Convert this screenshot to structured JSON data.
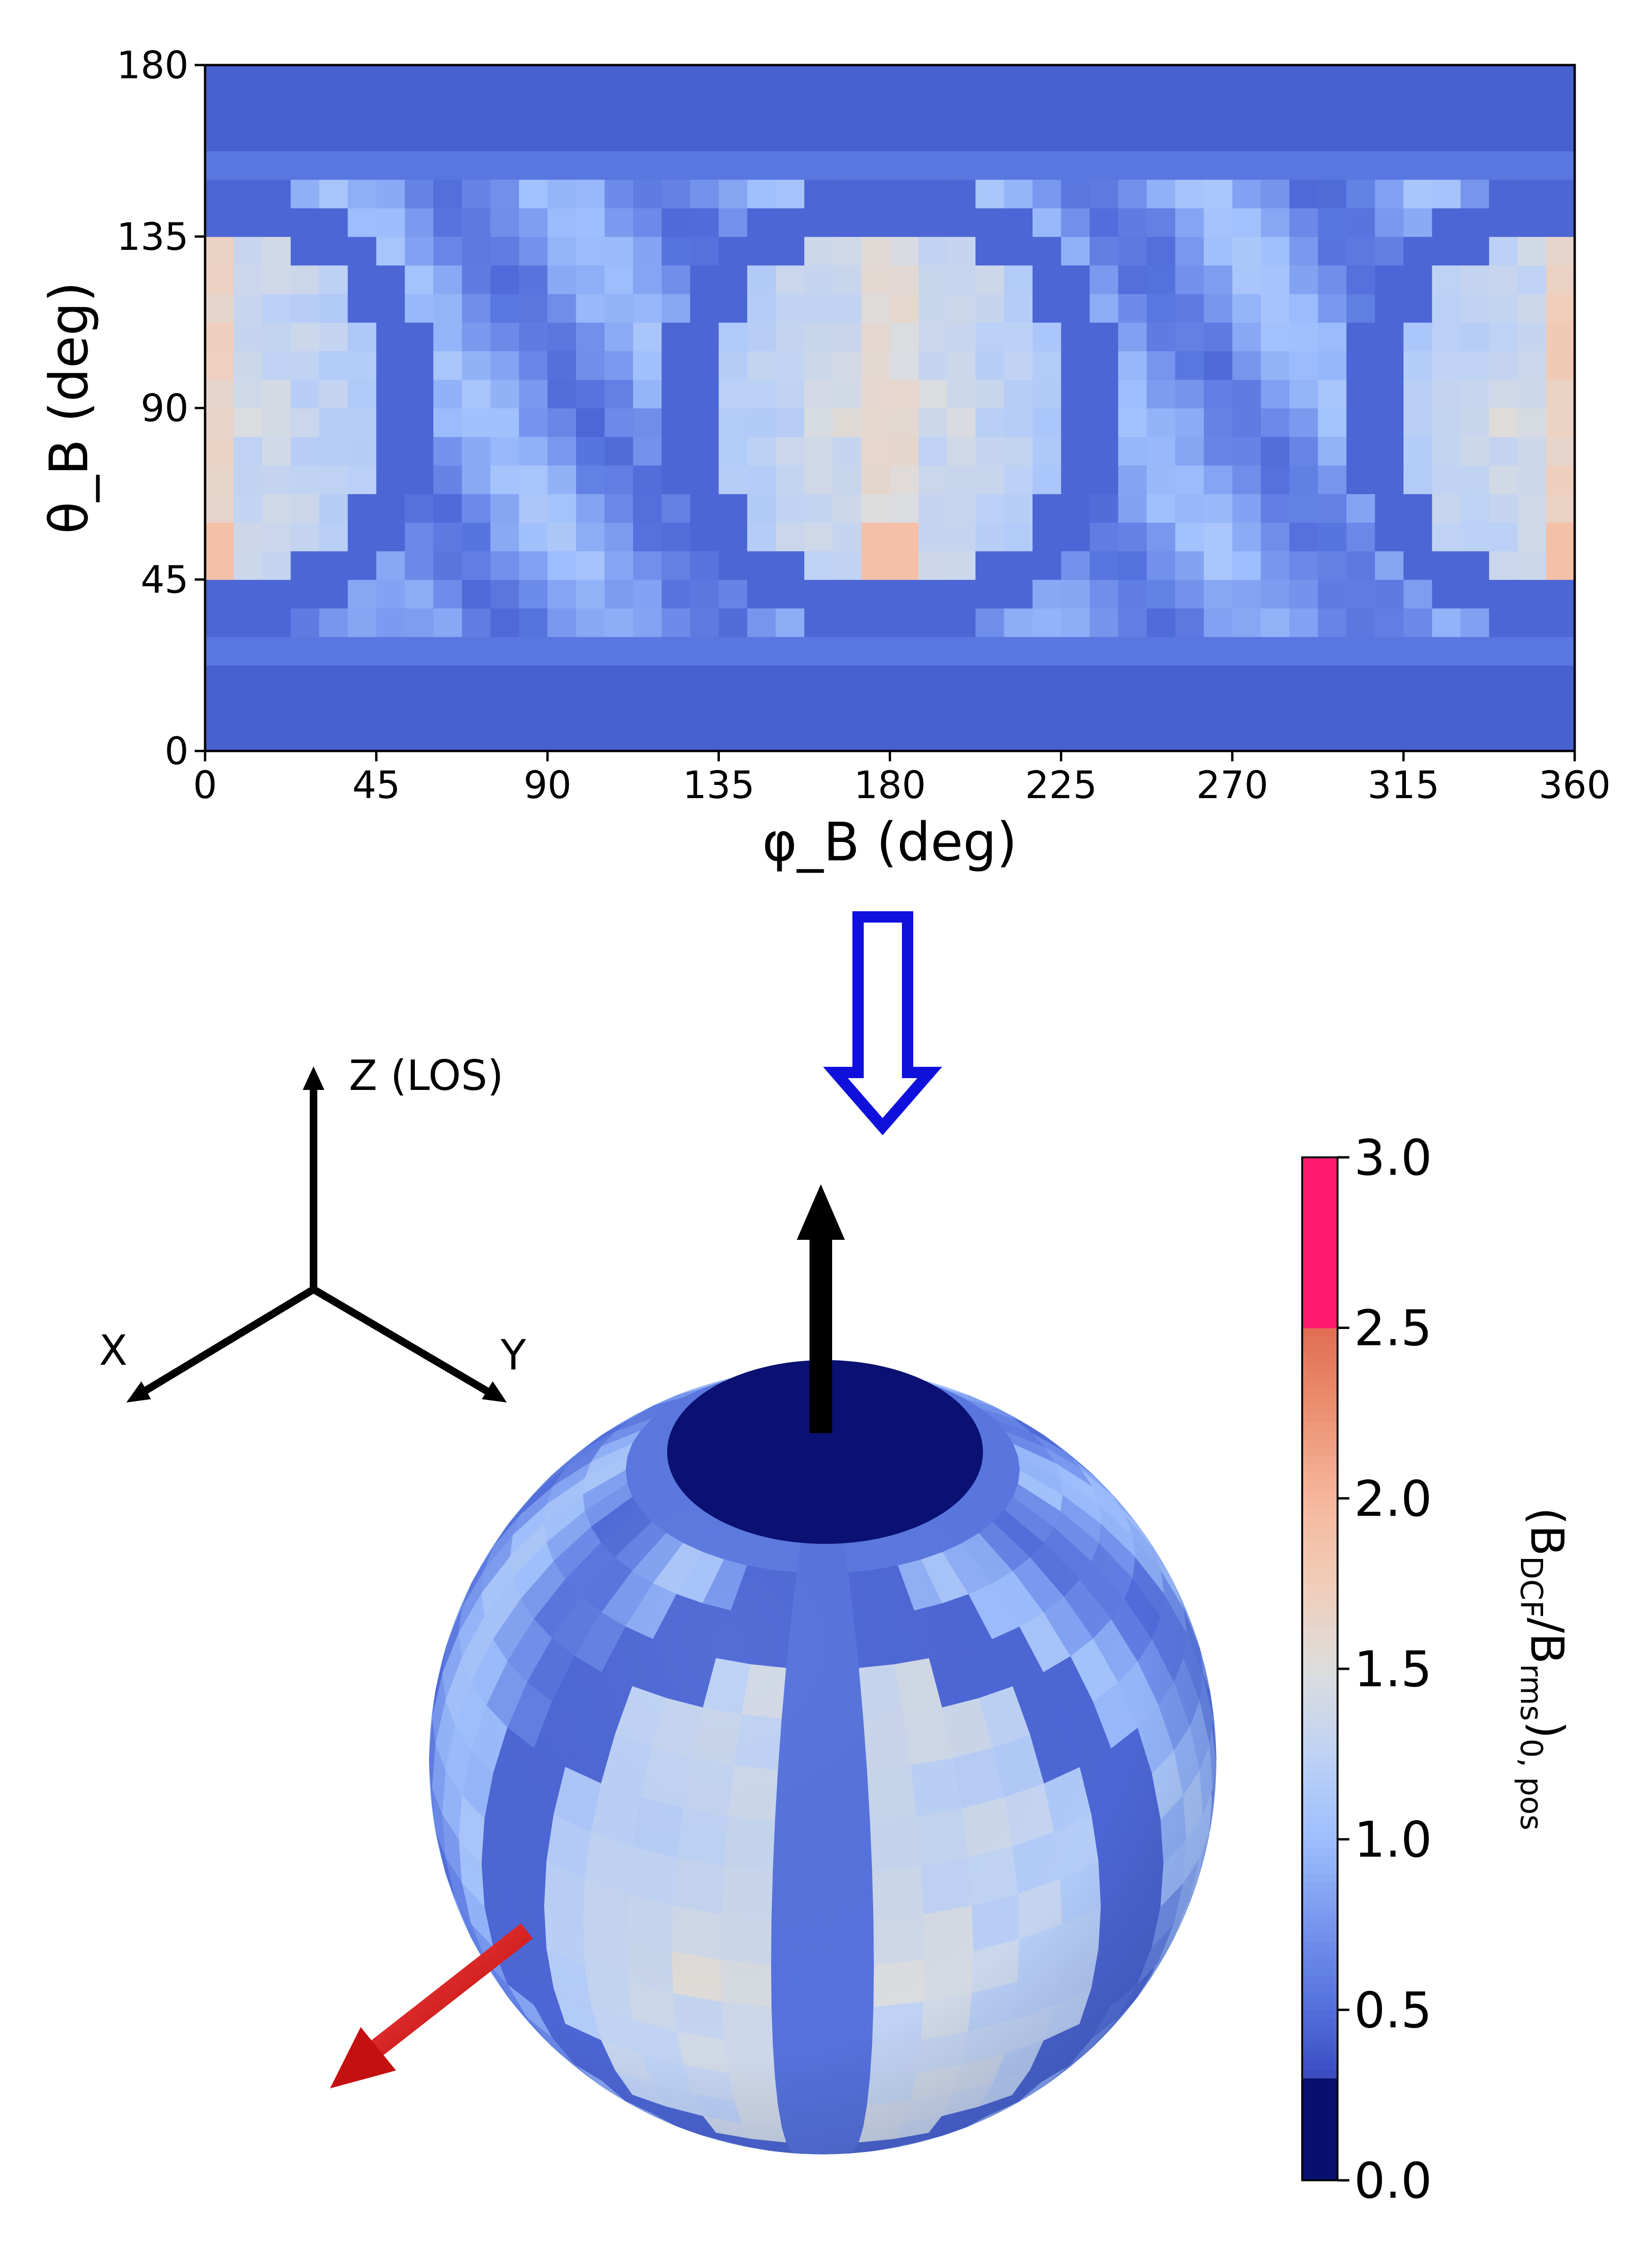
{
  "chart_data": [
    {
      "type": "heatmap",
      "title": "",
      "xlabel": "φ_B (deg)",
      "ylabel": "θ_B (deg)",
      "xlim": [
        0,
        360
      ],
      "ylim": [
        0,
        180
      ],
      "xticks": [
        0,
        45,
        90,
        135,
        180,
        225,
        270,
        315,
        360
      ],
      "yticks": [
        0,
        45,
        90,
        135,
        180
      ],
      "cell_size_deg": {
        "phi": 7.5,
        "theta": 7.5
      },
      "colorscale": "coolwarm",
      "value_range": [
        0,
        3
      ],
      "features": {
        "low_band_theta_below_deg": 22.5,
        "low_band_theta_above_deg": 157.5,
        "ring_centers_phi_deg": [
          0,
          180,
          360
        ],
        "ring_center_theta_deg": 90,
        "ring_radius_deg": 55,
        "ring_value": 0.45,
        "band_edge_value": 0.55,
        "peak_value": 1.9,
        "background_value": 0.85
      }
    },
    {
      "type": "sphere-projection",
      "axes_labels": {
        "z": "Z (LOS)",
        "x": "X",
        "y": "Y"
      },
      "colorbar": {
        "label_main": "(B",
        "label_sub1": "DCF",
        "label_mid": "/B",
        "label_sub2": "rms",
        "label_end": ")",
        "label_sub3": "0, pos",
        "ticks": [
          "0.0",
          "0.5",
          "1.0",
          "1.5",
          "2.0",
          "2.5",
          "3.0"
        ],
        "range": [
          0,
          3
        ],
        "lowest_bin_color": "#08106e",
        "top_bin_color": "#ff1a70"
      },
      "arrows": {
        "flow_arrow_color": "#1010dd",
        "los_arrow_color": "#000000",
        "field_arrow_color": "#d01010"
      },
      "pole_cap_color": "#0a1172"
    }
  ]
}
